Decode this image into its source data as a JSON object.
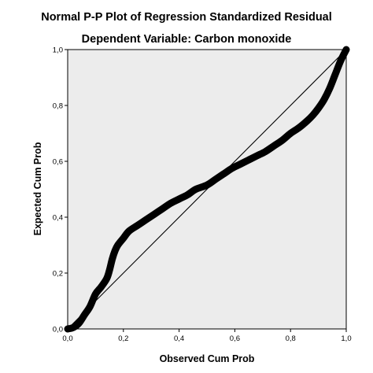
{
  "chart_data": {
    "type": "line",
    "title": "Normal P-P Plot of Regression Standardized Residual",
    "subtitle": "Dependent Variable: Carbon monoxide",
    "xlabel": "Observed Cum Prob",
    "ylabel": "Expected Cum Prob",
    "xlim": [
      0,
      1
    ],
    "ylim": [
      0,
      1
    ],
    "x_ticks": [
      "0,0",
      "0,2",
      "0,4",
      "0,6",
      "0,8",
      "1,0"
    ],
    "y_ticks": [
      "0,0",
      "0,2",
      "0,4",
      "0,6",
      "0,8",
      "1,0"
    ],
    "grid": false,
    "legend": "none",
    "reference_line": {
      "x": [
        0,
        1
      ],
      "y": [
        0,
        1
      ]
    },
    "series": [
      {
        "x": [
          0.0,
          0.02,
          0.04,
          0.06,
          0.08,
          0.1,
          0.12,
          0.14,
          0.15,
          0.16,
          0.17,
          0.18,
          0.2,
          0.22,
          0.25,
          0.28,
          0.31,
          0.34,
          0.37,
          0.4,
          0.43,
          0.46,
          0.5,
          0.53,
          0.56,
          0.59,
          0.62,
          0.65,
          0.68,
          0.71,
          0.74,
          0.77,
          0.8,
          0.83,
          0.86,
          0.88,
          0.9,
          0.92,
          0.94,
          0.96,
          0.98,
          1.0
        ],
        "y": [
          0.0,
          0.005,
          0.02,
          0.05,
          0.08,
          0.125,
          0.15,
          0.18,
          0.21,
          0.25,
          0.28,
          0.3,
          0.325,
          0.35,
          0.37,
          0.39,
          0.41,
          0.43,
          0.45,
          0.465,
          0.48,
          0.5,
          0.515,
          0.535,
          0.555,
          0.575,
          0.59,
          0.605,
          0.62,
          0.635,
          0.655,
          0.675,
          0.7,
          0.72,
          0.745,
          0.765,
          0.79,
          0.82,
          0.86,
          0.91,
          0.96,
          1.0
        ]
      }
    ]
  },
  "colors": {
    "plot_background": "#ececec",
    "curve": "#000000",
    "reference_line": "#000000",
    "frame": "#000000"
  }
}
